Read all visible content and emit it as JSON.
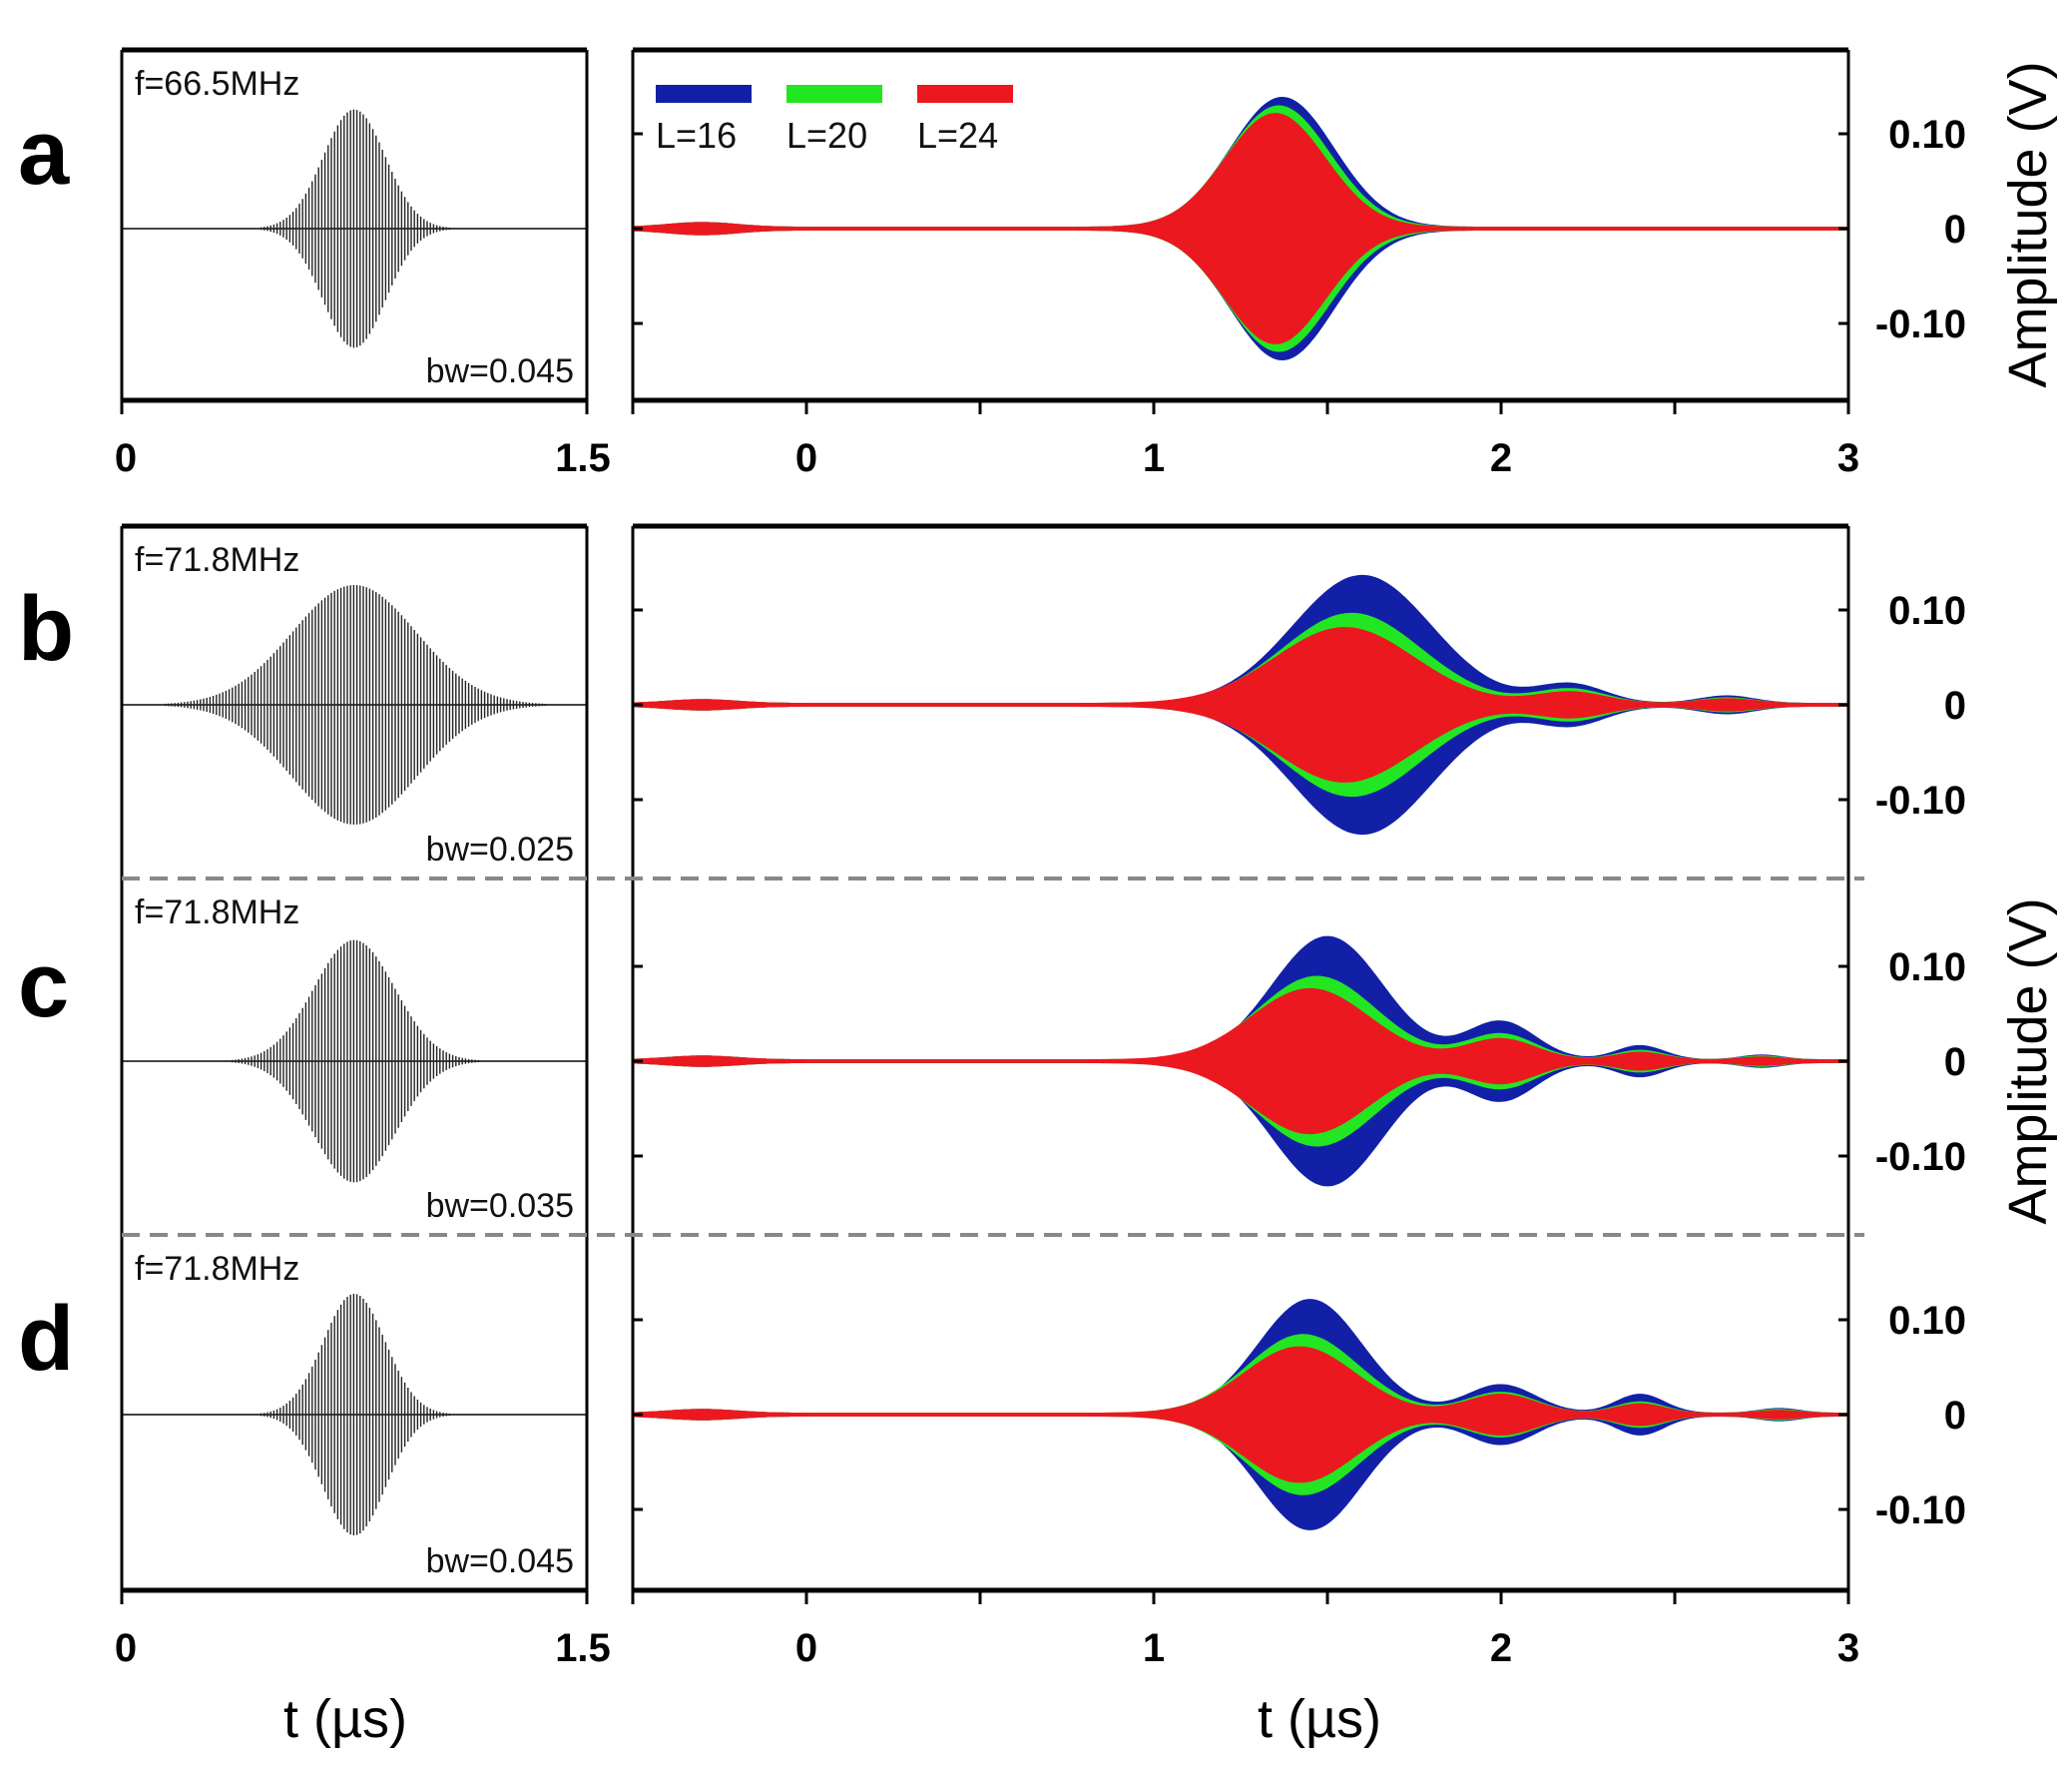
{
  "chart_data": {
    "type": "line",
    "title": "",
    "legend": {
      "placement": "top-left",
      "entries": [
        {
          "name": "L=16",
          "color": "#1220a8"
        },
        {
          "name": "L=20",
          "color": "#22e622"
        },
        {
          "name": "L=24",
          "color": "#ec1820"
        }
      ]
    },
    "left_xlabel": "t  (µs)",
    "right_xlabel": "t  (µs)",
    "ylabel": "Amplitude (V)",
    "left_xlim": [
      0,
      1.5
    ],
    "left_xticks": [
      "0",
      "1.5"
    ],
    "right_xlim": [
      -0.5,
      3
    ],
    "right_xtick_values": [
      -0.5,
      0,
      0.5,
      1,
      1.5,
      2,
      2.5,
      3
    ],
    "right_xtick_labels": {
      "0": "0",
      "1": "1",
      "2": "2",
      "3": "3"
    },
    "ytick_labels": [
      "0.10",
      "0",
      "-0.10"
    ],
    "ytick_values": [
      0.1,
      0,
      -0.1
    ],
    "ylim": [
      -0.18,
      0.19
    ],
    "panels": [
      {
        "letter": "a",
        "freq_label": "f=66.5MHz",
        "bw_label": "bw=0.045",
        "input": {
          "center": 0.75,
          "sigma": 0.1,
          "amp": 0.68
        },
        "outputs": [
          {
            "name": "L=16",
            "lobes": [
              [
                -0.3,
                0.005,
                0.1
              ],
              [
                1.37,
                0.137,
                0.15
              ]
            ]
          },
          {
            "name": "L=20",
            "lobes": [
              [
                -0.3,
                0.005,
                0.1
              ],
              [
                1.36,
                0.128,
                0.148
              ]
            ]
          },
          {
            "name": "L=24",
            "lobes": [
              [
                -0.3,
                0.005,
                0.1
              ],
              [
                1.35,
                0.12,
                0.145
              ]
            ]
          }
        ]
      },
      {
        "letter": "b",
        "freq_label": "f=71.8MHz",
        "bw_label": "bw=0.025",
        "input": {
          "center": 0.75,
          "sigma": 0.2,
          "amp": 0.68
        },
        "outputs": [
          {
            "name": "L=16",
            "lobes": [
              [
                -0.3,
                0.004,
                0.1
              ],
              [
                1.6,
                0.135,
                0.2
              ],
              [
                2.2,
                0.02,
                0.1
              ],
              [
                2.65,
                0.008,
                0.08
              ]
            ]
          },
          {
            "name": "L=20",
            "lobes": [
              [
                -0.3,
                0.004,
                0.1
              ],
              [
                1.57,
                0.095,
                0.2
              ],
              [
                2.2,
                0.015,
                0.1
              ],
              [
                2.65,
                0.006,
                0.08
              ]
            ]
          },
          {
            "name": "L=24",
            "lobes": [
              [
                -0.3,
                0.004,
                0.1
              ],
              [
                1.55,
                0.08,
                0.2
              ],
              [
                2.2,
                0.012,
                0.1
              ],
              [
                2.65,
                0.005,
                0.08
              ]
            ]
          }
        ]
      },
      {
        "letter": "c",
        "freq_label": "f=71.8MHz",
        "bw_label": "bw=0.035",
        "input": {
          "center": 0.75,
          "sigma": 0.13,
          "amp": 0.68
        },
        "outputs": [
          {
            "name": "L=16",
            "lobes": [
              [
                -0.3,
                0.004,
                0.1
              ],
              [
                1.5,
                0.13,
                0.16
              ],
              [
                2.0,
                0.04,
                0.1
              ],
              [
                2.4,
                0.015,
                0.07
              ],
              [
                2.75,
                0.005,
                0.06
              ]
            ]
          },
          {
            "name": "L=20",
            "lobes": [
              [
                -0.3,
                0.004,
                0.1
              ],
              [
                1.47,
                0.088,
                0.17
              ],
              [
                2.0,
                0.027,
                0.1
              ],
              [
                2.4,
                0.01,
                0.07
              ],
              [
                2.75,
                0.004,
                0.06
              ]
            ]
          },
          {
            "name": "L=24",
            "lobes": [
              [
                -0.3,
                0.004,
                0.1
              ],
              [
                1.45,
                0.075,
                0.17
              ],
              [
                2.0,
                0.022,
                0.1
              ],
              [
                2.4,
                0.008,
                0.07
              ],
              [
                2.75,
                0.003,
                0.06
              ]
            ]
          }
        ]
      },
      {
        "letter": "d",
        "freq_label": "f=71.8MHz",
        "bw_label": "bw=0.045",
        "input": {
          "center": 0.75,
          "sigma": 0.1,
          "amp": 0.68
        },
        "outputs": [
          {
            "name": "L=16",
            "lobes": [
              [
                -0.3,
                0.004,
                0.1
              ],
              [
                1.45,
                0.12,
                0.15
              ],
              [
                2.0,
                0.03,
                0.1
              ],
              [
                2.4,
                0.02,
                0.07
              ],
              [
                2.8,
                0.005,
                0.06
              ]
            ]
          },
          {
            "name": "L=20",
            "lobes": [
              [
                -0.3,
                0.004,
                0.1
              ],
              [
                1.43,
                0.083,
                0.16
              ],
              [
                2.0,
                0.022,
                0.1
              ],
              [
                2.4,
                0.012,
                0.07
              ],
              [
                2.8,
                0.004,
                0.06
              ]
            ]
          },
          {
            "name": "L=24",
            "lobes": [
              [
                -0.3,
                0.004,
                0.1
              ],
              [
                1.42,
                0.07,
                0.16
              ],
              [
                2.0,
                0.02,
                0.1
              ],
              [
                2.4,
                0.01,
                0.07
              ],
              [
                2.8,
                0.003,
                0.06
              ]
            ]
          }
        ]
      }
    ]
  }
}
